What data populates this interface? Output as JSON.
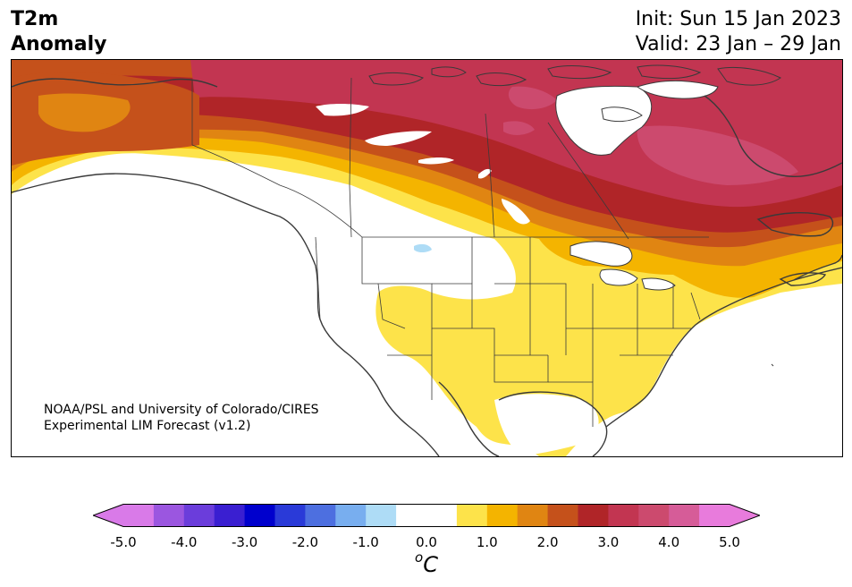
{
  "header": {
    "title_line1": "T2m",
    "title_line2": "Anomaly",
    "init_label": "Init: Sun 15 Jan 2023",
    "valid_label": "Valid: 23 Jan – 29 Jan"
  },
  "credit": {
    "line1": "NOAA/PSL and University of Colorado/CIRES",
    "line2": "Experimental LIM Forecast (v1.2)"
  },
  "colorbar": {
    "unit_base": "C",
    "unit_sup": "o",
    "levels": [
      "-5.0",
      "-4.0",
      "-3.0",
      "-2.0",
      "-1.0",
      "0.0",
      "1.0",
      "2.0",
      "3.0",
      "4.0",
      "5.0"
    ],
    "min": -5.0,
    "max": 5.0,
    "step": 0.5,
    "under_color": "#d97ae8",
    "over_color": "#e87bdc",
    "colors": [
      "#d97ae8",
      "#9b56e0",
      "#6b3ddb",
      "#3a1fd1",
      "#0000cd",
      "#2a3ad8",
      "#4d6fe0",
      "#78aeef",
      "#aedcf6",
      "#ffffff",
      "#ffffff",
      "#fde34a",
      "#f4b400",
      "#e08512",
      "#c5511b",
      "#b02528",
      "#c23551",
      "#cc4a6e",
      "#d65c98",
      "#e87bdc"
    ]
  }
}
